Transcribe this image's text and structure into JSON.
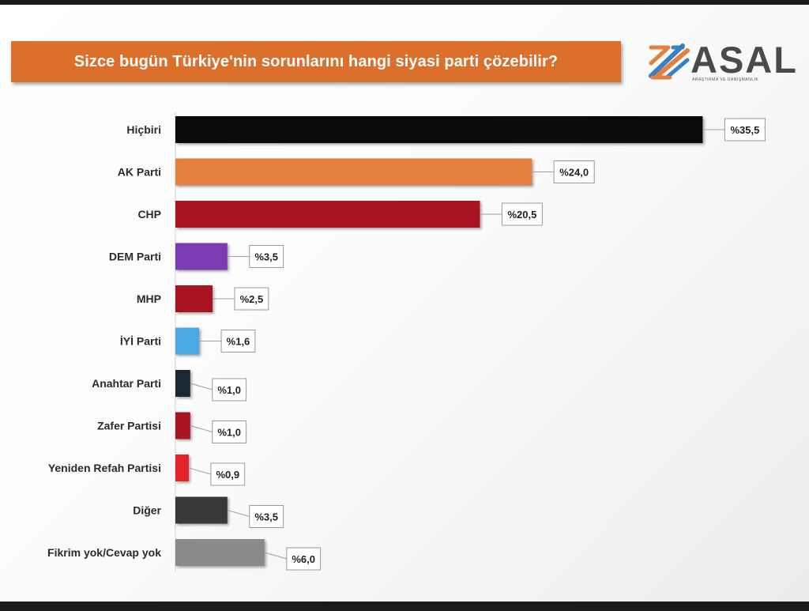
{
  "title": "Sizce bugün Türkiye'nin sorunlarını hangi siyasi parti çözebilir?",
  "logo": {
    "name": "ASAL",
    "subtitle": "ARAŞTIRMA VE DANIŞMANLIK"
  },
  "chart_data": {
    "type": "bar",
    "orientation": "horizontal",
    "title": "Sizce bugün Türkiye'nin sorunlarını hangi siyasi parti çözebilir?",
    "categories": [
      "Hiçbiri",
      "AK Parti",
      "CHP",
      "DEM Parti",
      "MHP",
      "İYİ Parti",
      "Anahtar Parti",
      "Zafer Partisi",
      "Yeniden Refah Partisi",
      "Diğer",
      "Fikrim yok/Cevap yok"
    ],
    "values": [
      35.5,
      24.0,
      20.5,
      3.5,
      2.5,
      1.6,
      1.0,
      1.0,
      0.9,
      3.5,
      6.0
    ],
    "value_labels": [
      "%35,5",
      "%24,0",
      "%20,5",
      "%3,5",
      "%2,5",
      "%1,6",
      "%1,0",
      "%1,0",
      "%0,9",
      "%3,5",
      "%6,0"
    ],
    "colors": [
      "#0a0a0a",
      "#e4803f",
      "#a81521",
      "#7d3bb3",
      "#a81521",
      "#4aa9e2",
      "#1c2833",
      "#a81521",
      "#e3222c",
      "#383838",
      "#8a8a8a"
    ],
    "xlabel": "",
    "ylabel": "",
    "grid": false,
    "legend": "none"
  }
}
